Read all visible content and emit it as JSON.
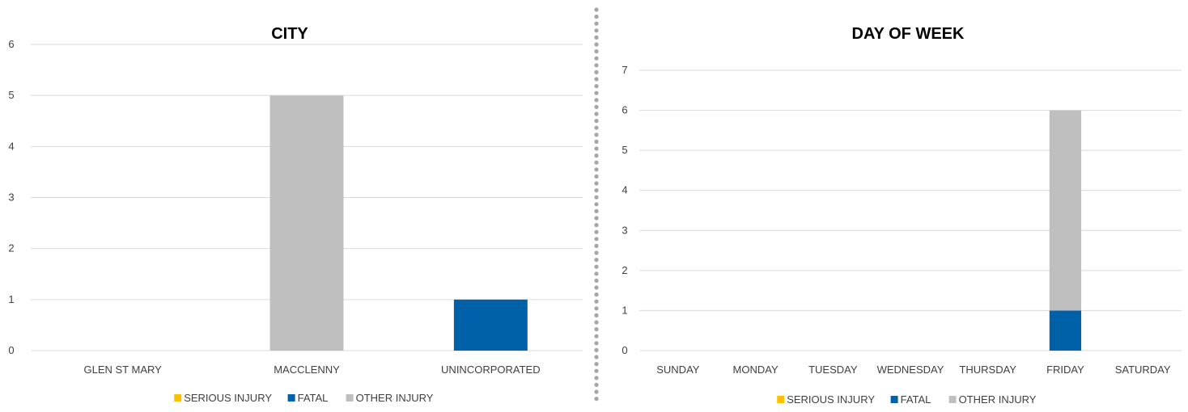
{
  "chart_data": [
    {
      "type": "bar",
      "stacked": true,
      "title": "CITY",
      "xlabel": "",
      "ylabel": "",
      "ylim": [
        0,
        6
      ],
      "yticks": [
        0,
        1,
        2,
        3,
        4,
        5,
        6
      ],
      "categories": [
        "GLEN ST MARY",
        "MACCLENNY",
        "UNINCORPORATED"
      ],
      "series": [
        {
          "name": "SERIOUS INJURY",
          "color": "#ffc000",
          "values": [
            0,
            0,
            0
          ]
        },
        {
          "name": "FATAL",
          "color": "#0060a8",
          "values": [
            0,
            0,
            1
          ]
        },
        {
          "name": "OTHER INJURY",
          "color": "#bfbfbf",
          "values": [
            0,
            5,
            0
          ]
        }
      ],
      "grid": true,
      "legend": "bottom"
    },
    {
      "type": "bar",
      "stacked": true,
      "title": "DAY OF WEEK",
      "xlabel": "",
      "ylabel": "",
      "ylim": [
        0,
        7
      ],
      "yticks": [
        0,
        1,
        2,
        3,
        4,
        5,
        6,
        7
      ],
      "categories": [
        "SUNDAY",
        "MONDAY",
        "TUESDAY",
        "WEDNESDAY",
        "THURSDAY",
        "FRIDAY",
        "SATURDAY"
      ],
      "series": [
        {
          "name": "SERIOUS INJURY",
          "color": "#ffc000",
          "values": [
            0,
            0,
            0,
            0,
            0,
            0,
            0
          ]
        },
        {
          "name": "FATAL",
          "color": "#0060a8",
          "values": [
            0,
            0,
            0,
            0,
            0,
            1,
            0
          ]
        },
        {
          "name": "OTHER INJURY",
          "color": "#bfbfbf",
          "values": [
            0,
            0,
            0,
            0,
            0,
            5,
            0
          ]
        }
      ],
      "grid": true,
      "legend": "bottom"
    }
  ]
}
